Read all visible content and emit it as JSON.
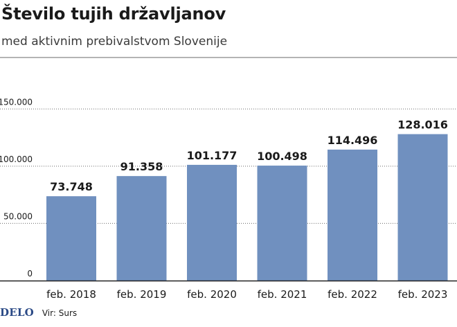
{
  "header": {
    "title": "Število tujih državljanov",
    "subtitle": "med aktivnim prebivalstvom Slovenije"
  },
  "footer": {
    "logo": "DELO",
    "source": "Vir: Surs"
  },
  "colors": {
    "bar": "#7090bf",
    "text": "#1a1a1a",
    "gridline": "#6a6a6a",
    "logo": "#2b4a86"
  },
  "chart_data": {
    "type": "bar",
    "title": "Število tujih državljanov",
    "subtitle": "med aktivnim prebivalstvom Slovenije",
    "categories": [
      "feb. 2018",
      "feb. 2019",
      "feb. 2020",
      "feb. 2021",
      "feb. 2022",
      "feb. 2023"
    ],
    "values": [
      73748,
      91358,
      101177,
      100498,
      114496,
      128016
    ],
    "value_labels": [
      "73.748",
      "91.358",
      "101.177",
      "100.498",
      "114.496",
      "128.016"
    ],
    "yticks": [
      0,
      50000,
      100000,
      150000
    ],
    "ytick_labels": [
      "0",
      "50.000",
      "100.000",
      "150.000"
    ],
    "ylim": [
      0,
      195000
    ],
    "grid": true,
    "xlabel": "",
    "ylabel": ""
  }
}
